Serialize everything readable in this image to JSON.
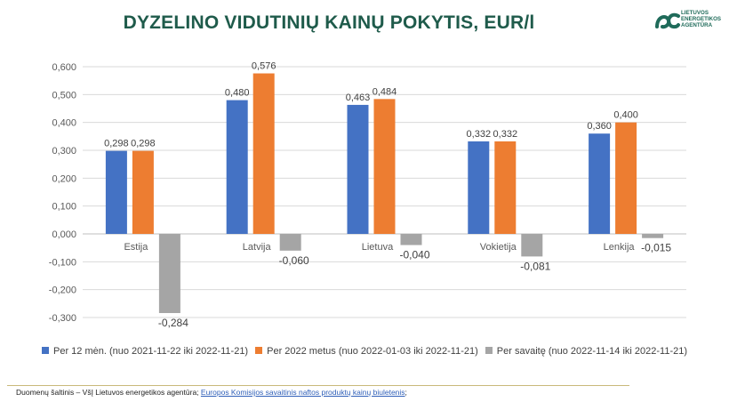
{
  "header": {
    "title": "DYZELINO VIDUTINIŲ KAINŲ POKYTIS, EUR/l"
  },
  "logo": {
    "line1": "LIETUVOS",
    "line2": "ENERGETIKOS",
    "line3": "AGENTŪRA",
    "color": "#1f6b5a"
  },
  "footer": {
    "source_prefix": "Duomenų šaltinis – VšĮ Lietuvos energetikos agentūra; ",
    "source_link": "Europos Komisijos savaitinis naftos produktų kainų biuletenis",
    "source_suffix": ";"
  },
  "chart_data": {
    "type": "bar",
    "title": "DYZELINO VIDUTINIŲ KAINŲ POKYTIS, EUR/l",
    "categories": [
      "Estija",
      "Latvija",
      "Lietuva",
      "Vokietija",
      "Lenkija"
    ],
    "series": [
      {
        "name": "Per 12 mėn. (nuo 2021-11-22 iki 2022-11-21)",
        "color": "#4472c4",
        "values": [
          0.298,
          0.48,
          0.463,
          0.332,
          0.36
        ],
        "labels": [
          "0,298",
          "0,480",
          "0,463",
          "0,332",
          "0,360"
        ]
      },
      {
        "name": "Per 2022 metus (nuo 2022-01-03 iki 2022-11-21)",
        "color": "#ed7d31",
        "values": [
          0.298,
          0.576,
          0.484,
          0.332,
          0.4
        ],
        "labels": [
          "0,298",
          "0,576",
          "0,484",
          "0,332",
          "0,400"
        ]
      },
      {
        "name": "Per savaitę (nuo 2022-11-14 iki 2022-11-21)",
        "color": "#a5a5a5",
        "values": [
          -0.284,
          -0.06,
          -0.04,
          -0.081,
          -0.015
        ],
        "labels": [
          "-0,284",
          "-0,060",
          "-0,040",
          "-0,081",
          "-0,015"
        ]
      }
    ],
    "yticks": [
      "0,600",
      "0,500",
      "0,400",
      "0,300",
      "0,200",
      "0,100",
      "0,000",
      "-0,100",
      "-0,200",
      "-0,300"
    ],
    "ylim": [
      -0.3,
      0.6
    ],
    "grid": true,
    "legend_position": "bottom"
  }
}
